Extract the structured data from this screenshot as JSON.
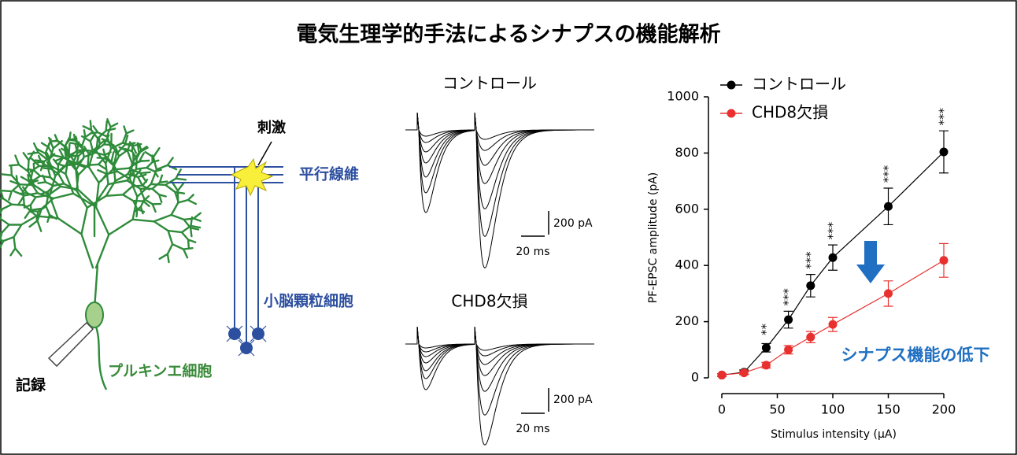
{
  "title": "電気生理学的手法によるシナプスの機能解析",
  "diagram": {
    "stimulus": "刺激",
    "parallel_fibers": "平行線維",
    "granule_cells": "小脳顆粒細胞",
    "recording": "記録",
    "purkinje_cell": "プルキンエ細胞"
  },
  "traces": [
    {
      "label": "コントロール",
      "scale_current": "200 pA",
      "scale_time": "20 ms"
    },
    {
      "label": "CHD8欠損",
      "scale_current": "200 pA",
      "scale_time": "20 ms"
    }
  ],
  "chart_data": {
    "type": "line",
    "x": [
      0,
      20,
      40,
      60,
      80,
      100,
      150,
      200
    ],
    "series": [
      {
        "name": "コントロール",
        "color": "#000000",
        "values": [
          10,
          20,
          107,
          207,
          328,
          428,
          610,
          804
        ],
        "errors": [
          5,
          8,
          15,
          30,
          40,
          45,
          65,
          75
        ]
      },
      {
        "name": "CHD8欠損",
        "color": "#e8312f",
        "values": [
          10,
          18,
          45,
          100,
          145,
          190,
          300,
          418
        ],
        "errors": [
          5,
          6,
          10,
          15,
          20,
          25,
          45,
          60
        ]
      }
    ],
    "significance": [
      null,
      null,
      "**",
      "***",
      "***",
      "***",
      "***",
      "***"
    ],
    "annotation": "シナプス機能の低下",
    "xlabel": "Stimulus intensity (μA)",
    "ylabel": "PF-EPSC amplitude (pA)",
    "xlim": [
      0,
      200
    ],
    "ylim": [
      0,
      1000
    ],
    "xticks": [
      0,
      50,
      100,
      150,
      200
    ],
    "yticks": [
      0,
      200,
      400,
      600,
      800,
      1000
    ]
  }
}
